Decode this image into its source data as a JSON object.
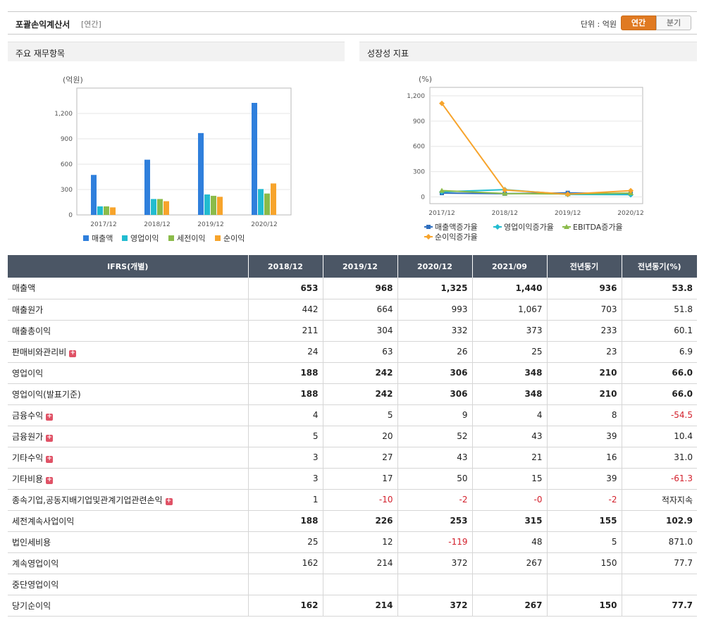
{
  "header": {
    "title": "포괄손익계산서",
    "subtitle": "[연간]",
    "unit_label": "단위 : 억원",
    "toggle_annual": "연간",
    "toggle_quarter": "분기"
  },
  "panels": {
    "left_title": "주요 재무항목",
    "right_title": "성장성 지표"
  },
  "chart_data": [
    {
      "type": "bar",
      "title": "주요 재무항목",
      "ylabel": "(억원)",
      "categories": [
        "2017/12",
        "2018/12",
        "2019/12",
        "2020/12"
      ],
      "yticks": [
        "0",
        "300",
        "600",
        "900",
        "1,200"
      ],
      "ylim": [
        0,
        1500
      ],
      "grid": true,
      "legend": "bottom",
      "series": [
        {
          "name": "매출액",
          "color": "#2f7fdc",
          "values": [
            473,
            653,
            968,
            1325
          ]
        },
        {
          "name": "영업이익",
          "color": "#22bcd0",
          "values": [
            101,
            188,
            242,
            306
          ]
        },
        {
          "name": "세전이익",
          "color": "#8bbb4a",
          "values": [
            101,
            188,
            226,
            253
          ]
        },
        {
          "name": "순이익",
          "color": "#f7a42c",
          "values": [
            89,
            162,
            214,
            372
          ]
        }
      ]
    },
    {
      "type": "line",
      "title": "성장성 지표",
      "ylabel": "(%)",
      "categories": [
        "2017/12",
        "2018/12",
        "2019/12",
        "2020/12"
      ],
      "yticks": [
        "0",
        "300",
        "600",
        "900",
        "1,200"
      ],
      "ylim": [
        -80,
        1300
      ],
      "grid": true,
      "legend": "bottom",
      "series": [
        {
          "name": "매출액증가율",
          "color": "#2f6fbf",
          "marker": "square",
          "values": [
            45,
            38,
            48,
            37
          ]
        },
        {
          "name": "영업이익증가율",
          "color": "#22bcd0",
          "marker": "diamond",
          "values": [
            60,
            86,
            29,
            26
          ]
        },
        {
          "name": "EBITDA증가율",
          "color": "#8bbb4a",
          "marker": "triangle",
          "values": [
            75,
            40,
            35,
            45
          ]
        },
        {
          "name": "순이익증가율",
          "color": "#f7a42c",
          "marker": "diamond",
          "values": [
            1110,
            82,
            32,
            74
          ]
        }
      ]
    }
  ],
  "table": {
    "headers": [
      "IFRS(개별)",
      "2018/12",
      "2019/12",
      "2020/12",
      "2021/09",
      "전년동기",
      "전년동기(%)"
    ],
    "rows": [
      {
        "label": "매출액",
        "bold": true,
        "plus": false,
        "values": [
          "653",
          "968",
          "1,325",
          "1,440",
          "936",
          "53.8"
        ]
      },
      {
        "label": "매출원가",
        "bold": false,
        "plus": false,
        "values": [
          "442",
          "664",
          "993",
          "1,067",
          "703",
          "51.8"
        ]
      },
      {
        "label": "매출총이익",
        "bold": false,
        "plus": false,
        "values": [
          "211",
          "304",
          "332",
          "373",
          "233",
          "60.1"
        ]
      },
      {
        "label": "판매비와관리비",
        "bold": false,
        "plus": true,
        "values": [
          "24",
          "63",
          "26",
          "25",
          "23",
          "6.9"
        ]
      },
      {
        "label": "영업이익",
        "bold": true,
        "plus": false,
        "values": [
          "188",
          "242",
          "306",
          "348",
          "210",
          "66.0"
        ]
      },
      {
        "label": "영업이익(발표기준)",
        "bold": true,
        "plus": false,
        "values": [
          "188",
          "242",
          "306",
          "348",
          "210",
          "66.0"
        ]
      },
      {
        "label": "금융수익",
        "bold": false,
        "plus": true,
        "values": [
          "4",
          "5",
          "9",
          "4",
          "8",
          "-54.5"
        ]
      },
      {
        "label": "금융원가",
        "bold": false,
        "plus": true,
        "values": [
          "5",
          "20",
          "52",
          "43",
          "39",
          "10.4"
        ]
      },
      {
        "label": "기타수익",
        "bold": false,
        "plus": true,
        "values": [
          "3",
          "27",
          "43",
          "21",
          "16",
          "31.0"
        ]
      },
      {
        "label": "기타비용",
        "bold": false,
        "plus": true,
        "values": [
          "3",
          "17",
          "50",
          "15",
          "39",
          "-61.3"
        ]
      },
      {
        "label": "종속기업,공동지배기업및관계기업관련손익",
        "bold": false,
        "plus": true,
        "values": [
          "1",
          "-10",
          "-2",
          "-0",
          "-2",
          "적자지속"
        ]
      },
      {
        "label": "세전계속사업이익",
        "bold": true,
        "plus": false,
        "values": [
          "188",
          "226",
          "253",
          "315",
          "155",
          "102.9"
        ]
      },
      {
        "label": "법인세비용",
        "bold": false,
        "plus": false,
        "values": [
          "25",
          "12",
          "-119",
          "48",
          "5",
          "871.0"
        ]
      },
      {
        "label": "계속영업이익",
        "bold": false,
        "plus": false,
        "values": [
          "162",
          "214",
          "372",
          "267",
          "150",
          "77.7"
        ]
      },
      {
        "label": "중단영업이익",
        "bold": false,
        "plus": false,
        "values": [
          "",
          "",
          "",
          "",
          "",
          ""
        ]
      },
      {
        "label": "당기순이익",
        "bold": true,
        "plus": false,
        "values": [
          "162",
          "214",
          "372",
          "267",
          "150",
          "77.7"
        ]
      }
    ]
  }
}
